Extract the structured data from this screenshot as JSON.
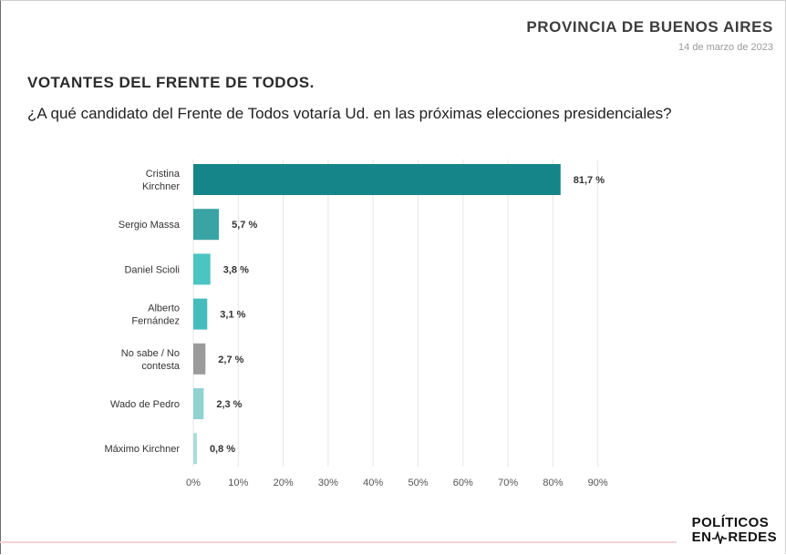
{
  "header": {
    "region": "PROVINCIA DE BUENOS AIRES",
    "date": "14 de marzo de 2023"
  },
  "title": "VOTANTES DEL FRENTE DE TODOS.",
  "question": "¿A qué candidato del Frente de Todos votaría Ud. en las próximas elecciones presidenciales?",
  "logo": {
    "line1": "POLÍTICOS",
    "line2_left": "EN",
    "line2_right": "REDES"
  },
  "chart_data": {
    "type": "bar",
    "orientation": "horizontal",
    "categories": [
      [
        "Cristina",
        "Kirchner"
      ],
      [
        "Sergio Massa"
      ],
      [
        "Daniel Scioli"
      ],
      [
        "Alberto",
        "Fernández"
      ],
      [
        "No sabe / No",
        "contesta"
      ],
      [
        "Wado de Pedro"
      ],
      [
        "Máximo Kirchner"
      ]
    ],
    "values": [
      81.7,
      5.7,
      3.8,
      3.1,
      2.7,
      2.3,
      0.8
    ],
    "value_labels": [
      "81,7 %",
      "5,7 %",
      "3,8 %",
      "3,1 %",
      "2,7 %",
      "2,3 %",
      "0,8 %"
    ],
    "colors": [
      "#15858a",
      "#3aa3a3",
      "#4cc4c2",
      "#45bcbc",
      "#9b9b9b",
      "#8fd2d0",
      "#a9dcda"
    ],
    "xlim": [
      0,
      90
    ],
    "xticks": [
      "0%",
      "10%",
      "20%",
      "30%",
      "40%",
      "50%",
      "60%",
      "70%",
      "80%",
      "90%"
    ],
    "grid": true,
    "legend": "none"
  }
}
